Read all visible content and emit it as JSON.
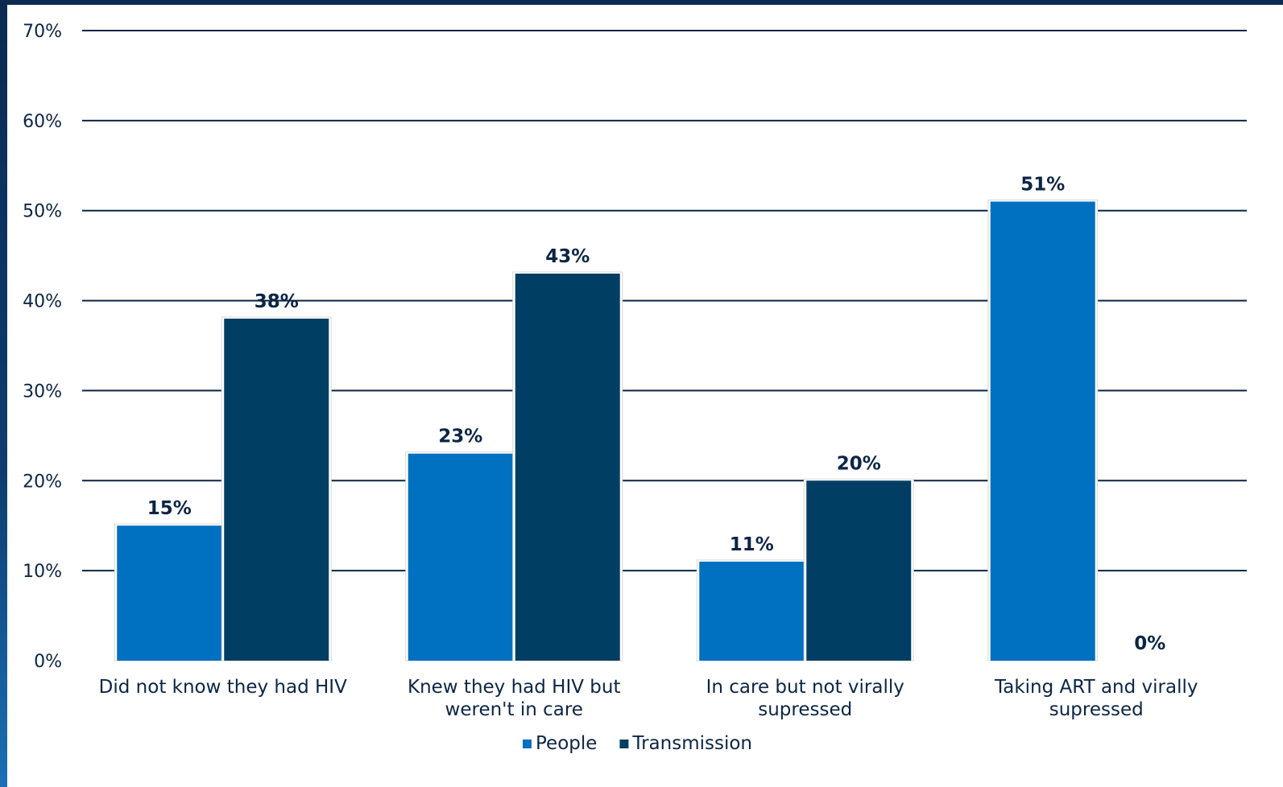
{
  "chart_data": {
    "type": "bar",
    "categories": [
      [
        "Did not know they had HIV"
      ],
      [
        "Knew they had HIV but",
        "weren't in care"
      ],
      [
        "In care but not virally",
        "supressed"
      ],
      [
        "Taking ART and virally",
        "supressed"
      ]
    ],
    "series": [
      {
        "name": "People",
        "values": [
          15,
          23,
          11,
          51
        ],
        "labels": [
          "15%",
          "23%",
          "11%",
          "51%"
        ],
        "color": "#0070c0"
      },
      {
        "name": "Transmission",
        "values": [
          38,
          43,
          20,
          0
        ],
        "labels": [
          "38%",
          "43%",
          "20%",
          "0%"
        ],
        "color": "#003f63"
      }
    ],
    "ylim": [
      0,
      70
    ],
    "yticks": [
      "0%",
      "10%",
      "20%",
      "30%",
      "40%",
      "50%",
      "60%",
      "70%"
    ],
    "grid": true,
    "legend": "bottom-center",
    "gridline_color": "#0b2545"
  }
}
